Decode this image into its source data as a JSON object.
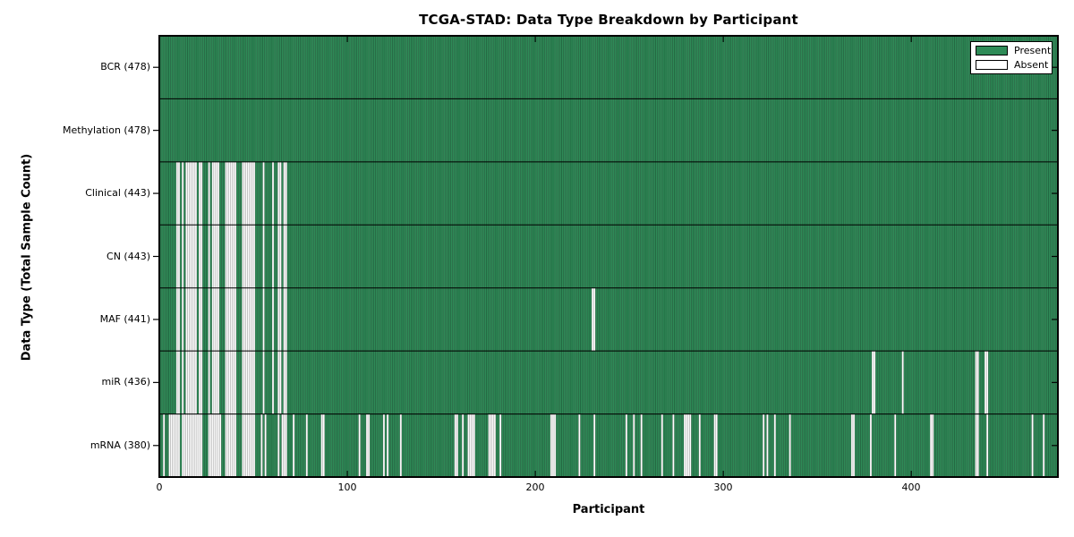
{
  "title": "TCGA-STAD: Data Type Breakdown by Participant",
  "legend": {
    "present_label": "Present",
    "absent_label": "Absent"
  },
  "chart_data": {
    "type": "heatmap",
    "title": "TCGA-STAD: Data Type Breakdown by Participant",
    "xlabel": "Participant",
    "ylabel": "Data Type (Total Sample Count)",
    "x_ticks": [
      0,
      100,
      200,
      300,
      400
    ],
    "x_range": [
      0,
      478
    ],
    "n_participants": 478,
    "grid": false,
    "legend_position": "upper right",
    "legend_entries": [
      {
        "label": "Present",
        "color": "#2e8b57"
      },
      {
        "label": "Absent",
        "color": "#ffffff"
      }
    ],
    "colors": {
      "present": "#2e8b57",
      "absent": "#ffffff",
      "frame": "#000000",
      "bar_edge": "#000000",
      "background": "#ffffff"
    },
    "rows": [
      {
        "label": "BCR (478)",
        "name": "BCR",
        "total_present": 478,
        "absent": []
      },
      {
        "label": "Methylation (478)",
        "name": "Methylation",
        "total_present": 478,
        "absent": []
      },
      {
        "label": "Clinical (443)",
        "name": "Clinical",
        "total_present": 443,
        "absent": [
          9,
          10,
          12,
          14,
          15,
          16,
          17,
          18,
          19,
          21,
          22,
          26,
          28,
          29,
          30,
          31,
          35,
          36,
          37,
          38,
          39,
          40,
          44,
          45,
          46,
          47,
          48,
          49,
          50,
          55,
          60,
          63,
          64,
          66,
          67
        ]
      },
      {
        "label": "CN (443)",
        "name": "CN",
        "total_present": 443,
        "absent": [
          9,
          10,
          12,
          14,
          15,
          16,
          17,
          18,
          19,
          21,
          22,
          26,
          28,
          29,
          30,
          31,
          35,
          36,
          37,
          38,
          39,
          40,
          44,
          45,
          46,
          47,
          48,
          49,
          50,
          55,
          60,
          63,
          64,
          66,
          67
        ]
      },
      {
        "label": "MAF (441)",
        "name": "MAF",
        "total_present": 441,
        "absent": [
          9,
          10,
          12,
          14,
          15,
          16,
          17,
          18,
          19,
          21,
          22,
          26,
          28,
          29,
          30,
          31,
          35,
          36,
          37,
          38,
          39,
          40,
          44,
          45,
          46,
          47,
          48,
          49,
          50,
          55,
          60,
          63,
          64,
          66,
          67,
          230,
          231
        ]
      },
      {
        "label": "miR (436)",
        "name": "miR",
        "total_present": 436,
        "absent": [
          9,
          10,
          12,
          14,
          15,
          16,
          17,
          18,
          19,
          21,
          22,
          26,
          28,
          29,
          30,
          31,
          35,
          36,
          37,
          38,
          39,
          40,
          44,
          45,
          46,
          47,
          48,
          49,
          50,
          55,
          60,
          63,
          64,
          66,
          67,
          379,
          380,
          395,
          434,
          435,
          439,
          440
        ]
      },
      {
        "label": "mRNA (380)",
        "name": "mRNA",
        "total_present": 380,
        "absent": [
          2,
          5,
          6,
          7,
          8,
          9,
          10,
          12,
          13,
          14,
          15,
          16,
          17,
          18,
          19,
          20,
          21,
          22,
          26,
          27,
          28,
          29,
          30,
          31,
          32,
          35,
          36,
          37,
          38,
          39,
          40,
          44,
          45,
          46,
          47,
          48,
          49,
          50,
          54,
          56,
          63,
          65,
          66,
          67,
          71,
          78,
          86,
          87,
          106,
          110,
          111,
          119,
          121,
          128,
          157,
          158,
          161,
          164,
          165,
          166,
          167,
          175,
          176,
          177,
          178,
          181,
          208,
          209,
          210,
          223,
          231,
          248,
          252,
          256,
          267,
          273,
          279,
          280,
          281,
          282,
          287,
          295,
          296,
          321,
          323,
          327,
          335,
          368,
          369,
          378,
          391,
          410,
          411,
          434,
          435,
          440,
          464,
          470
        ]
      }
    ]
  }
}
